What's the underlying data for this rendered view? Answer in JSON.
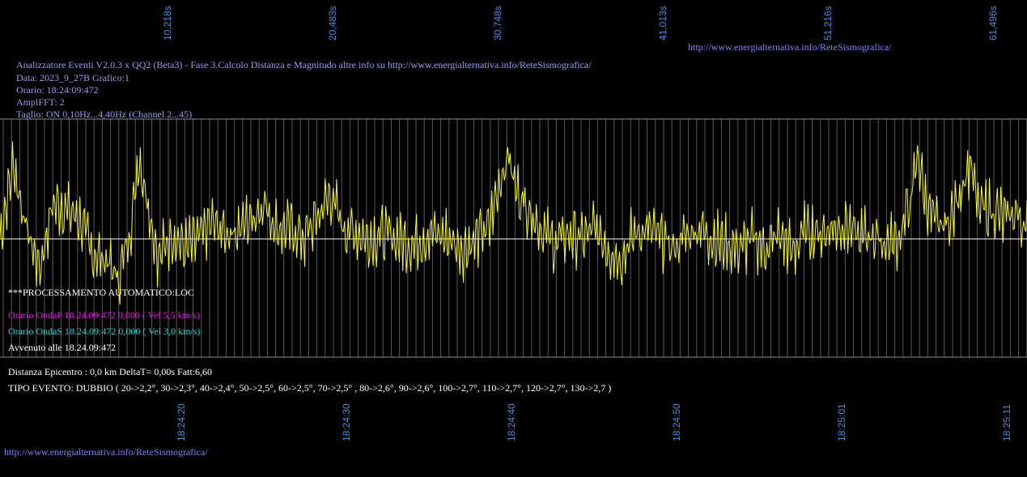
{
  "header": {
    "title_line": "Analizzatore Eventi V2.0.3 x QQ2 (Beta3) - Fase 3.Calcolo Distanza e Magnitudo altre info su http://www.energialternativa.info/ReteSismografica/",
    "data_line": "Data: 2023_9_27B Grafico:1",
    "orario_line": "Orario: 18:24:09:472",
    "ampl_line": "AmplFFT: 2",
    "taglio_line": "Taglio: ON 0,10Hz...4,40Hz       (Channel 2...45)"
  },
  "top_link": "http://www.energialternativa.info/ReteSismografica/",
  "bottom_link": "http://www.energialternativa.info/ReteSismografica/",
  "seconds_ticks": [
    "10,218s",
    "20,483s",
    "30,748s",
    "41,013s",
    "51,216s",
    "61,496s"
  ],
  "time_ticks": [
    "18:24:20",
    "18:24:30",
    "18:24:40",
    "18:24:50",
    "18:25:01",
    "18:25:11"
  ],
  "processing": {
    "auto_line": "***PROCESSAMENTO AUTOMATICO:LOC",
    "onda_p": "Orario OndaP 18.24.09:472  0,000 ( Vel 5,5 km/s)",
    "onda_s": "Orario OndaS 18.24.09:472  0,000 ( Vel 3,0 km/s)",
    "avvenuto": "Avvenuto alle 18.24.09:472"
  },
  "results": {
    "distanza": "Distanza Epicentro : 0,0 km DeltaT= 0,00s  Fatt:6,60",
    "tipo_evento": "TIPO EVENTO: DUBBIO ( 20->2,2°, 30->2,3°, 40->2,4°, 50->2,5°, 60->2,5°, 70->2,5° , 80->2,6°, 90->2,6°, 100->2,7°, 110->2,7°, 120->2,7°, 130->2,7 )"
  },
  "colors": {
    "trace": "#ffff00",
    "grid": "#5a5a5a",
    "baseline": "#ffffff",
    "tick_label": "#3f8fe0"
  },
  "chart_data": {
    "type": "line",
    "x_ticks_top": [
      "10,218s",
      "20,483s",
      "30,748s",
      "41,013s",
      "51,216s",
      "61,496s"
    ],
    "x_ticks_bottom": [
      "18:24:20",
      "18:24:30",
      "18:24:40",
      "18:24:50",
      "18:25:01",
      "18:25:11"
    ],
    "xlim": [
      0,
      62.2
    ],
    "ylim": [
      -1,
      1
    ],
    "grid": true,
    "series": [
      {
        "color": "#ffff00",
        "x": [
          0,
          0.8,
          1.6,
          2.4,
          3.2,
          4.0,
          4.8,
          5.6,
          6.4,
          7.2,
          8.0,
          8.4,
          8.8,
          9.6,
          10.4,
          11.2,
          12.0,
          12.8,
          13.6,
          14.4,
          15.2,
          16.0,
          16.8,
          17.6,
          18.4,
          19.2,
          20.0,
          20.8,
          21.6,
          22.4,
          23.2,
          24.0,
          24.8,
          25.6,
          26.4,
          27.2,
          28.0,
          28.8,
          29.6,
          30.4,
          30.8,
          31.2,
          32.0,
          32.8,
          33.6,
          34.4,
          35.2,
          36.0,
          36.8,
          37.6,
          38.4,
          39.2,
          40.0,
          40.8,
          41.6,
          42.4,
          43.2,
          44.0,
          44.8,
          45.6,
          46.4,
          47.2,
          48.0,
          48.8,
          49.6,
          50.4,
          51.2,
          52.0,
          52.8,
          53.6,
          54.4,
          55.2,
          55.6,
          56.0,
          56.8,
          57.6,
          58.4,
          58.8,
          59.2,
          60.0,
          60.8,
          61.6,
          62.2
        ],
        "y": [
          0.0,
          0.75,
          0.1,
          -0.3,
          0.35,
          0.3,
          0.2,
          -0.15,
          -0.2,
          -0.4,
          0.2,
          0.82,
          0.5,
          -0.2,
          0.05,
          -0.1,
          0.0,
          0.15,
          0.05,
          0.1,
          0.2,
          0.35,
          0.1,
          0.1,
          0.0,
          0.2,
          0.45,
          0.1,
          0.05,
          0.0,
          0.05,
          0.0,
          -0.05,
          0.0,
          0.05,
          0.0,
          -0.1,
          0.0,
          0.1,
          0.65,
          0.85,
          0.5,
          0.3,
          0.1,
          -0.05,
          0.05,
          0.0,
          0.1,
          -0.1,
          -0.2,
          0.05,
          0.1,
          0.0,
          -0.1,
          0.05,
          0.1,
          0.0,
          -0.05,
          -0.1,
          0.0,
          -0.1,
          0.05,
          -0.15,
          0.1,
          0.05,
          0.1,
          0.15,
          0.0,
          0.05,
          -0.05,
          0.0,
          0.4,
          0.85,
          0.4,
          0.1,
          0.2,
          0.6,
          0.75,
          0.3,
          0.3,
          0.2,
          0.25,
          0.1
        ]
      }
    ]
  }
}
